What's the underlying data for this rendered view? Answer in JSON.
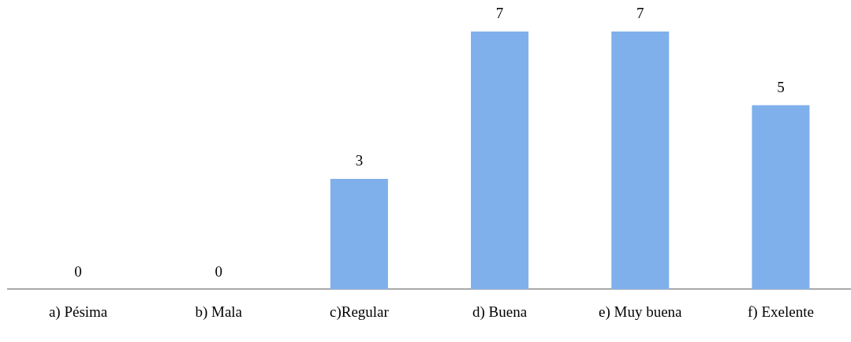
{
  "chart_data": {
    "type": "bar",
    "categories": [
      "a) Pésima",
      "b) Mala",
      "c)Regular",
      "d) Buena",
      "e) Muy buena",
      "f) Exelente"
    ],
    "values": [
      0,
      0,
      3,
      7,
      7,
      5
    ],
    "color": "#7fb0eb",
    "data_labels": true,
    "grid": false,
    "legend": false
  }
}
